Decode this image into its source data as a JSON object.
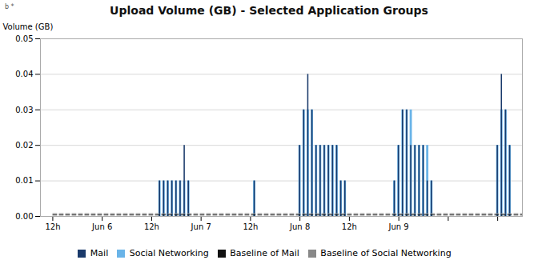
{
  "chart_data": {
    "type": "bar",
    "title": "Upload Volume (GB) - Selected Application Groups",
    "ylabel": "Volume (GB)",
    "annotations": [
      "b *"
    ],
    "xlim": [
      -3,
      114
    ],
    "xticks": [
      {
        "value": 0,
        "label": "12h"
      },
      {
        "value": 12,
        "label": "Jun 6"
      },
      {
        "value": 24,
        "label": "12h"
      },
      {
        "value": 36,
        "label": "Jun 7"
      },
      {
        "value": 48,
        "label": "12h"
      },
      {
        "value": 60,
        "label": "Jun 8"
      },
      {
        "value": 72,
        "label": "12h"
      },
      {
        "value": 84,
        "label": "Jun 9"
      },
      {
        "value": 96,
        "label": null
      },
      {
        "value": 108,
        "label": null
      }
    ],
    "ylim": [
      0,
      0.05
    ],
    "yticks": [
      {
        "value": 0,
        "label": "0.00"
      },
      0.01,
      0.02,
      0.03,
      0.04,
      0.05
    ],
    "grid": true,
    "legend": "bottom",
    "series": [
      {
        "name": "Mail",
        "type": "bar",
        "color": "#1a3a6b",
        "x": [
          26,
          27,
          28,
          29,
          30,
          31,
          32,
          33,
          49,
          60,
          61,
          62,
          63,
          64,
          65,
          66,
          67,
          68,
          69,
          70,
          71,
          83,
          84,
          85,
          86,
          87,
          88,
          89,
          90,
          91,
          92,
          108,
          109,
          110,
          111
        ],
        "values": [
          0.01,
          0.01,
          0.01,
          0.01,
          0.01,
          0.01,
          0.02,
          0.01,
          0.01,
          0.02,
          0.03,
          0.04,
          0.03,
          0.02,
          0.02,
          0.02,
          0.02,
          0.02,
          0.02,
          0.01,
          0.01,
          0.01,
          0.02,
          0.03,
          0.03,
          0.02,
          0.02,
          0.02,
          0.02,
          0.01,
          0.01,
          0.02,
          0.04,
          0.03,
          0.02
        ]
      },
      {
        "name": "Social Networking",
        "type": "bar",
        "color": "#6ab4e8",
        "x": [
          26,
          27,
          28,
          29,
          30,
          31,
          32,
          33,
          49,
          60,
          61,
          62,
          63,
          64,
          65,
          66,
          67,
          68,
          69,
          70,
          71,
          83,
          84,
          85,
          86,
          87,
          88,
          89,
          90,
          91,
          92,
          108,
          109,
          110,
          111
        ],
        "values": [
          0.01,
          0.01,
          0.01,
          0.01,
          0.01,
          0.01,
          0.01,
          0.01,
          0.01,
          0.02,
          0.03,
          0.03,
          0.03,
          0.02,
          0.02,
          0.02,
          0.02,
          0.02,
          0.02,
          0.01,
          0.01,
          0.01,
          0.02,
          0.03,
          0.03,
          0.03,
          0.02,
          0.02,
          0.02,
          0.02,
          0.01,
          0.02,
          0.03,
          0.03,
          0.02
        ]
      },
      {
        "name": "Baseline of Mail",
        "type": "line",
        "line_style": "dashed",
        "color": "#111111",
        "x": [
          0,
          114
        ],
        "values": [
          0.0004,
          0.0004
        ]
      },
      {
        "name": "Baseline of Social Networking",
        "type": "line",
        "line_style": "dashed",
        "color": "#888888",
        "x": [
          0,
          114
        ],
        "values": [
          0.0008,
          0.0008
        ]
      }
    ]
  }
}
